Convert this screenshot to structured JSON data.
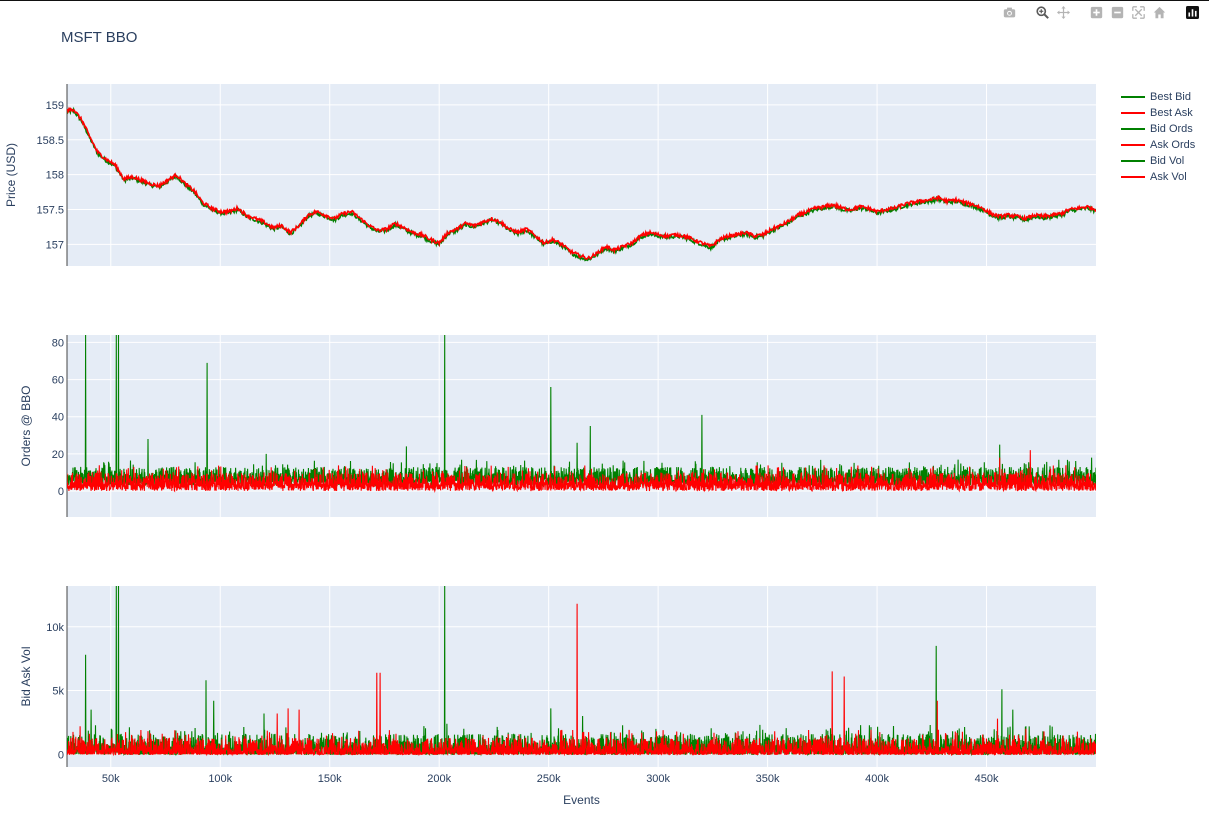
{
  "page": {
    "title": "MSFT BBO"
  },
  "modebar": [
    {
      "name": "camera-icon",
      "label": "Download plot as a png"
    },
    {
      "name": "zoom-icon",
      "label": "Zoom"
    },
    {
      "name": "pan-icon",
      "label": "Pan"
    },
    {
      "name": "zoom-in-icon",
      "label": "Zoom in"
    },
    {
      "name": "zoom-out-icon",
      "label": "Zoom out"
    },
    {
      "name": "autoscale-icon",
      "label": "Autoscale"
    },
    {
      "name": "home-icon",
      "label": "Reset axes"
    },
    {
      "name": "plotly-logo-icon",
      "label": "Produced with Plotly"
    }
  ],
  "legend": {
    "items": [
      {
        "label": "Best Bid",
        "color": "#008000"
      },
      {
        "label": "Best Ask",
        "color": "#ff0000"
      },
      {
        "label": "Bid Ords",
        "color": "#008000"
      },
      {
        "label": "Ask Ords",
        "color": "#ff0000"
      },
      {
        "label": "Bid Vol",
        "color": "#008000"
      },
      {
        "label": "Ask Vol",
        "color": "#ff0000"
      }
    ]
  },
  "chart_data": [
    {
      "type": "line",
      "title": "MSFT BBO",
      "xlabel": "Events",
      "ylabel": "Price (USD)",
      "xlim": [
        30000,
        500000
      ],
      "ylim": [
        156.69,
        159.3
      ],
      "yticks": [
        157,
        157.5,
        158,
        158.5,
        159
      ],
      "ytick_labels": [
        "157",
        "157.5",
        "158",
        "158.5",
        "159"
      ],
      "grid": true,
      "series": [
        {
          "name": "Best Bid",
          "color": "#008000",
          "x": [
            30000,
            33000,
            37000,
            40000,
            44000,
            48000,
            52000,
            56000,
            60000,
            64000,
            68000,
            72000,
            76000,
            80000,
            84000,
            88000,
            92000,
            96000,
            100000,
            104000,
            108000,
            112000,
            116000,
            120000,
            124000,
            128000,
            132000,
            136000,
            140000,
            144000,
            148000,
            152000,
            156000,
            160000,
            164000,
            168000,
            172000,
            176000,
            180000,
            184000,
            188000,
            192000,
            196000,
            200000,
            204000,
            208000,
            212000,
            216000,
            220000,
            224000,
            228000,
            232000,
            236000,
            240000,
            244000,
            248000,
            252000,
            256000,
            260000,
            264000,
            268000,
            272000,
            276000,
            280000,
            284000,
            288000,
            292000,
            296000,
            300000,
            304000,
            308000,
            312000,
            316000,
            320000,
            324000,
            328000,
            332000,
            336000,
            340000,
            344000,
            348000,
            352000,
            356000,
            360000,
            364000,
            368000,
            372000,
            376000,
            380000,
            384000,
            388000,
            392000,
            396000,
            400000,
            404000,
            408000,
            412000,
            416000,
            420000,
            424000,
            428000,
            432000,
            436000,
            440000,
            444000,
            448000,
            452000,
            456000,
            460000,
            464000,
            468000,
            472000,
            476000,
            480000,
            484000,
            488000,
            492000,
            496000,
            500000
          ],
          "y": [
            158.9,
            158.92,
            158.75,
            158.55,
            158.3,
            158.2,
            158.12,
            157.92,
            157.95,
            157.9,
            157.85,
            157.82,
            157.9,
            157.98,
            157.85,
            157.75,
            157.58,
            157.5,
            157.45,
            157.45,
            157.5,
            157.4,
            157.35,
            157.3,
            157.22,
            157.25,
            157.15,
            157.25,
            157.4,
            157.45,
            157.4,
            157.35,
            157.42,
            157.45,
            157.35,
            157.25,
            157.18,
            157.2,
            157.28,
            157.22,
            157.15,
            157.12,
            157.05,
            157.0,
            157.15,
            157.2,
            157.28,
            157.25,
            157.3,
            157.35,
            157.3,
            157.2,
            157.15,
            157.2,
            157.1,
            157.0,
            157.05,
            156.98,
            156.88,
            156.82,
            156.78,
            156.85,
            156.95,
            156.9,
            156.95,
            157.0,
            157.1,
            157.15,
            157.12,
            157.1,
            157.12,
            157.1,
            157.05,
            157.0,
            156.95,
            157.05,
            157.1,
            157.12,
            157.15,
            157.1,
            157.12,
            157.2,
            157.25,
            157.32,
            157.4,
            157.45,
            157.5,
            157.52,
            157.55,
            157.5,
            157.48,
            157.52,
            157.5,
            157.45,
            157.48,
            157.5,
            157.55,
            157.58,
            157.6,
            157.62,
            157.65,
            157.6,
            157.62,
            157.58,
            157.55,
            157.5,
            157.42,
            157.38,
            157.4,
            157.38,
            157.35,
            157.4,
            157.38,
            157.4,
            157.42,
            157.48,
            157.5,
            157.52,
            157.48
          ]
        },
        {
          "name": "Best Ask",
          "color": "#ff0000",
          "x": [
            30000,
            33000,
            37000,
            40000,
            44000,
            48000,
            52000,
            56000,
            60000,
            64000,
            68000,
            72000,
            76000,
            80000,
            84000,
            88000,
            92000,
            96000,
            100000,
            104000,
            108000,
            112000,
            116000,
            120000,
            124000,
            128000,
            132000,
            136000,
            140000,
            144000,
            148000,
            152000,
            156000,
            160000,
            164000,
            168000,
            172000,
            176000,
            180000,
            184000,
            188000,
            192000,
            196000,
            200000,
            204000,
            208000,
            212000,
            216000,
            220000,
            224000,
            228000,
            232000,
            236000,
            240000,
            244000,
            248000,
            252000,
            256000,
            260000,
            264000,
            268000,
            272000,
            276000,
            280000,
            284000,
            288000,
            292000,
            296000,
            300000,
            304000,
            308000,
            312000,
            316000,
            320000,
            324000,
            328000,
            332000,
            336000,
            340000,
            344000,
            348000,
            352000,
            356000,
            360000,
            364000,
            368000,
            372000,
            376000,
            380000,
            384000,
            388000,
            392000,
            396000,
            400000,
            404000,
            408000,
            412000,
            416000,
            420000,
            424000,
            428000,
            432000,
            436000,
            440000,
            444000,
            448000,
            452000,
            456000,
            460000,
            464000,
            468000,
            472000,
            476000,
            480000,
            484000,
            488000,
            492000,
            496000,
            500000
          ],
          "y": [
            158.92,
            158.94,
            158.77,
            158.57,
            158.32,
            158.22,
            158.14,
            157.94,
            157.97,
            157.92,
            157.87,
            157.84,
            157.92,
            158.0,
            157.87,
            157.77,
            157.6,
            157.52,
            157.47,
            157.47,
            157.52,
            157.42,
            157.37,
            157.32,
            157.24,
            157.27,
            157.17,
            157.27,
            157.42,
            157.47,
            157.42,
            157.37,
            157.44,
            157.47,
            157.37,
            157.27,
            157.2,
            157.22,
            157.3,
            157.24,
            157.17,
            157.14,
            157.07,
            157.02,
            157.17,
            157.22,
            157.3,
            157.27,
            157.32,
            157.37,
            157.32,
            157.22,
            157.17,
            157.22,
            157.12,
            157.02,
            157.07,
            157.0,
            156.9,
            156.84,
            156.8,
            156.87,
            156.97,
            156.92,
            156.97,
            157.02,
            157.12,
            157.17,
            157.14,
            157.12,
            157.14,
            157.12,
            157.07,
            157.02,
            156.97,
            157.07,
            157.12,
            157.14,
            157.17,
            157.12,
            157.14,
            157.22,
            157.27,
            157.34,
            157.42,
            157.47,
            157.52,
            157.54,
            157.57,
            157.52,
            157.5,
            157.54,
            157.52,
            157.47,
            157.5,
            157.52,
            157.57,
            157.6,
            157.62,
            157.64,
            157.67,
            157.62,
            157.64,
            157.6,
            157.57,
            157.52,
            157.44,
            157.4,
            157.42,
            157.4,
            157.37,
            157.42,
            157.4,
            157.42,
            157.44,
            157.5,
            157.52,
            157.54,
            157.5
          ]
        }
      ]
    },
    {
      "type": "line",
      "xlabel": "",
      "ylabel": "Orders @ BBO",
      "xlim": [
        30000,
        500000
      ],
      "ylim": [
        -14,
        84
      ],
      "yticks": [
        0,
        20,
        40,
        60,
        80
      ],
      "ytick_labels": [
        "0",
        "20",
        "40",
        "60",
        "80"
      ],
      "grid": true,
      "series": [
        {
          "name": "Bid Ords",
          "color": "#008000",
          "baseline": 8,
          "noise": 5,
          "spikes": [
            [
              38500,
              84
            ],
            [
              52500,
              84
            ],
            [
              53500,
              84
            ],
            [
              67000,
              28
            ],
            [
              94000,
              69
            ],
            [
              121000,
              20
            ],
            [
              185000,
              24
            ],
            [
              202500,
              84
            ],
            [
              251000,
              56
            ],
            [
              263000,
              26
            ],
            [
              269000,
              35
            ],
            [
              320000,
              41
            ],
            [
              456000,
              25
            ],
            [
              498000,
              18
            ]
          ]
        },
        {
          "name": "Ask Ords",
          "color": "#ff0000",
          "baseline": 5,
          "noise": 5,
          "spikes": [
            [
              470000,
              22
            ],
            [
              456000,
              18
            ]
          ]
        }
      ]
    },
    {
      "type": "line",
      "xlabel": "Events",
      "ylabel": "Bid Ask Vol",
      "xlim": [
        30000,
        500000
      ],
      "ylim": [
        -1000,
        13200
      ],
      "yticks": [
        0,
        5000,
        10000
      ],
      "ytick_labels": [
        "0",
        "5k",
        "10k"
      ],
      "xticks": [
        50000,
        100000,
        150000,
        200000,
        250000,
        300000,
        350000,
        400000,
        450000
      ],
      "xtick_labels": [
        "50k",
        "100k",
        "150k",
        "200k",
        "250k",
        "300k",
        "350k",
        "400k",
        "450k"
      ],
      "grid": true,
      "series": [
        {
          "name": "Bid Vol",
          "color": "#008000",
          "baseline": 700,
          "noise": 900,
          "spikes": [
            [
              38500,
              7800
            ],
            [
              41000,
              3500
            ],
            [
              52500,
              13200
            ],
            [
              53500,
              13200
            ],
            [
              93500,
              5800
            ],
            [
              97000,
              4200
            ],
            [
              120000,
              3200
            ],
            [
              202500,
              13200
            ],
            [
              203500,
              2400
            ],
            [
              251000,
              3600
            ],
            [
              265500,
              3000
            ],
            [
              427000,
              8500
            ],
            [
              457000,
              5100
            ],
            [
              462000,
              3500
            ]
          ]
        },
        {
          "name": "Ask Vol",
          "color": "#ff0000",
          "baseline": 500,
          "noise": 800,
          "spikes": [
            [
              36000,
              2200
            ],
            [
              126000,
              3200
            ],
            [
              131000,
              3600
            ],
            [
              136000,
              3500
            ],
            [
              171500,
              6400
            ],
            [
              173000,
              6400
            ],
            [
              263000,
              11800
            ],
            [
              379500,
              6500
            ],
            [
              385000,
              6100
            ],
            [
              427500,
              4200
            ],
            [
              455000,
              2800
            ],
            [
              468000,
              2000
            ]
          ]
        }
      ]
    }
  ]
}
